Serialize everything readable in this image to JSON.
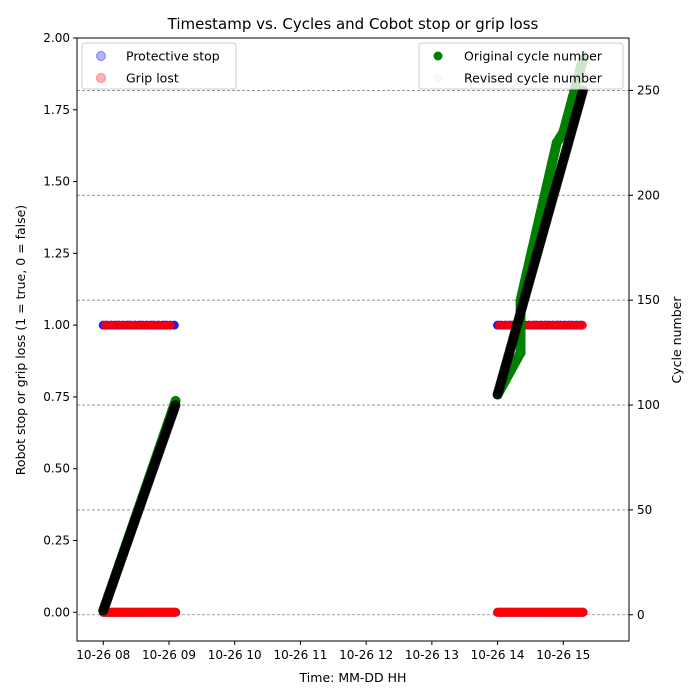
{
  "chart_data": {
    "type": "scatter",
    "title": "Timestamp vs. Cycles and Cobot stop or grip loss",
    "xlabel": "Time: MM-DD HH",
    "ylabel_left": "Robot stop or grip loss (1 = true, 0 = false)",
    "ylabel_right": "Cycle number",
    "x_ticks": [
      "10-26 08",
      "10-26 09",
      "10-26 10",
      "10-26 11",
      "10-26 12",
      "10-26 13",
      "10-26 14",
      "10-26 15"
    ],
    "xlim_hours": [
      7.6,
      16.0
    ],
    "ylim_left": [
      -0.1,
      2.0
    ],
    "y_ticks_left": [
      "0.00",
      "0.25",
      "0.50",
      "0.75",
      "1.00",
      "1.25",
      "1.50",
      "1.75",
      "2.00"
    ],
    "ylim_right": [
      -12.5,
      275
    ],
    "y_ticks_right": [
      "0",
      "50",
      "100",
      "150",
      "200",
      "250"
    ],
    "grid": "right-axis horizontal dashed",
    "legend_left": {
      "position": "upper-left",
      "entries": [
        "Protective stop",
        "Grip lost"
      ]
    },
    "legend_right": {
      "position": "upper-right",
      "entries": [
        "Original cycle number",
        "Revised cycle number"
      ]
    },
    "series": [
      {
        "name": "Protective stop",
        "axis": "left",
        "color": "#0000ff",
        "stops_true_hours": [
          [
            8.0,
            9.1
          ],
          [
            14.0,
            15.3
          ]
        ]
      },
      {
        "name": "Grip lost",
        "axis": "left",
        "color": "#ff0000",
        "stops_true_hours": [
          [
            8.0,
            9.1
          ],
          [
            14.0,
            15.3
          ]
        ]
      },
      {
        "name": "Original cycle number",
        "axis": "right",
        "color": "#008000",
        "points": [
          [
            8.0,
            2
          ],
          [
            9.1,
            102
          ],
          [
            14.0,
            105
          ],
          [
            14.35,
            125
          ],
          [
            14.35,
            150
          ],
          [
            14.9,
            225
          ],
          [
            15.0,
            230
          ],
          [
            15.3,
            265
          ]
        ]
      },
      {
        "name": "Revised cycle number",
        "axis": "right",
        "color": "#000000",
        "points": [
          [
            8.0,
            2
          ],
          [
            9.1,
            100
          ],
          [
            14.0,
            105
          ],
          [
            15.3,
            250
          ]
        ]
      }
    ]
  }
}
